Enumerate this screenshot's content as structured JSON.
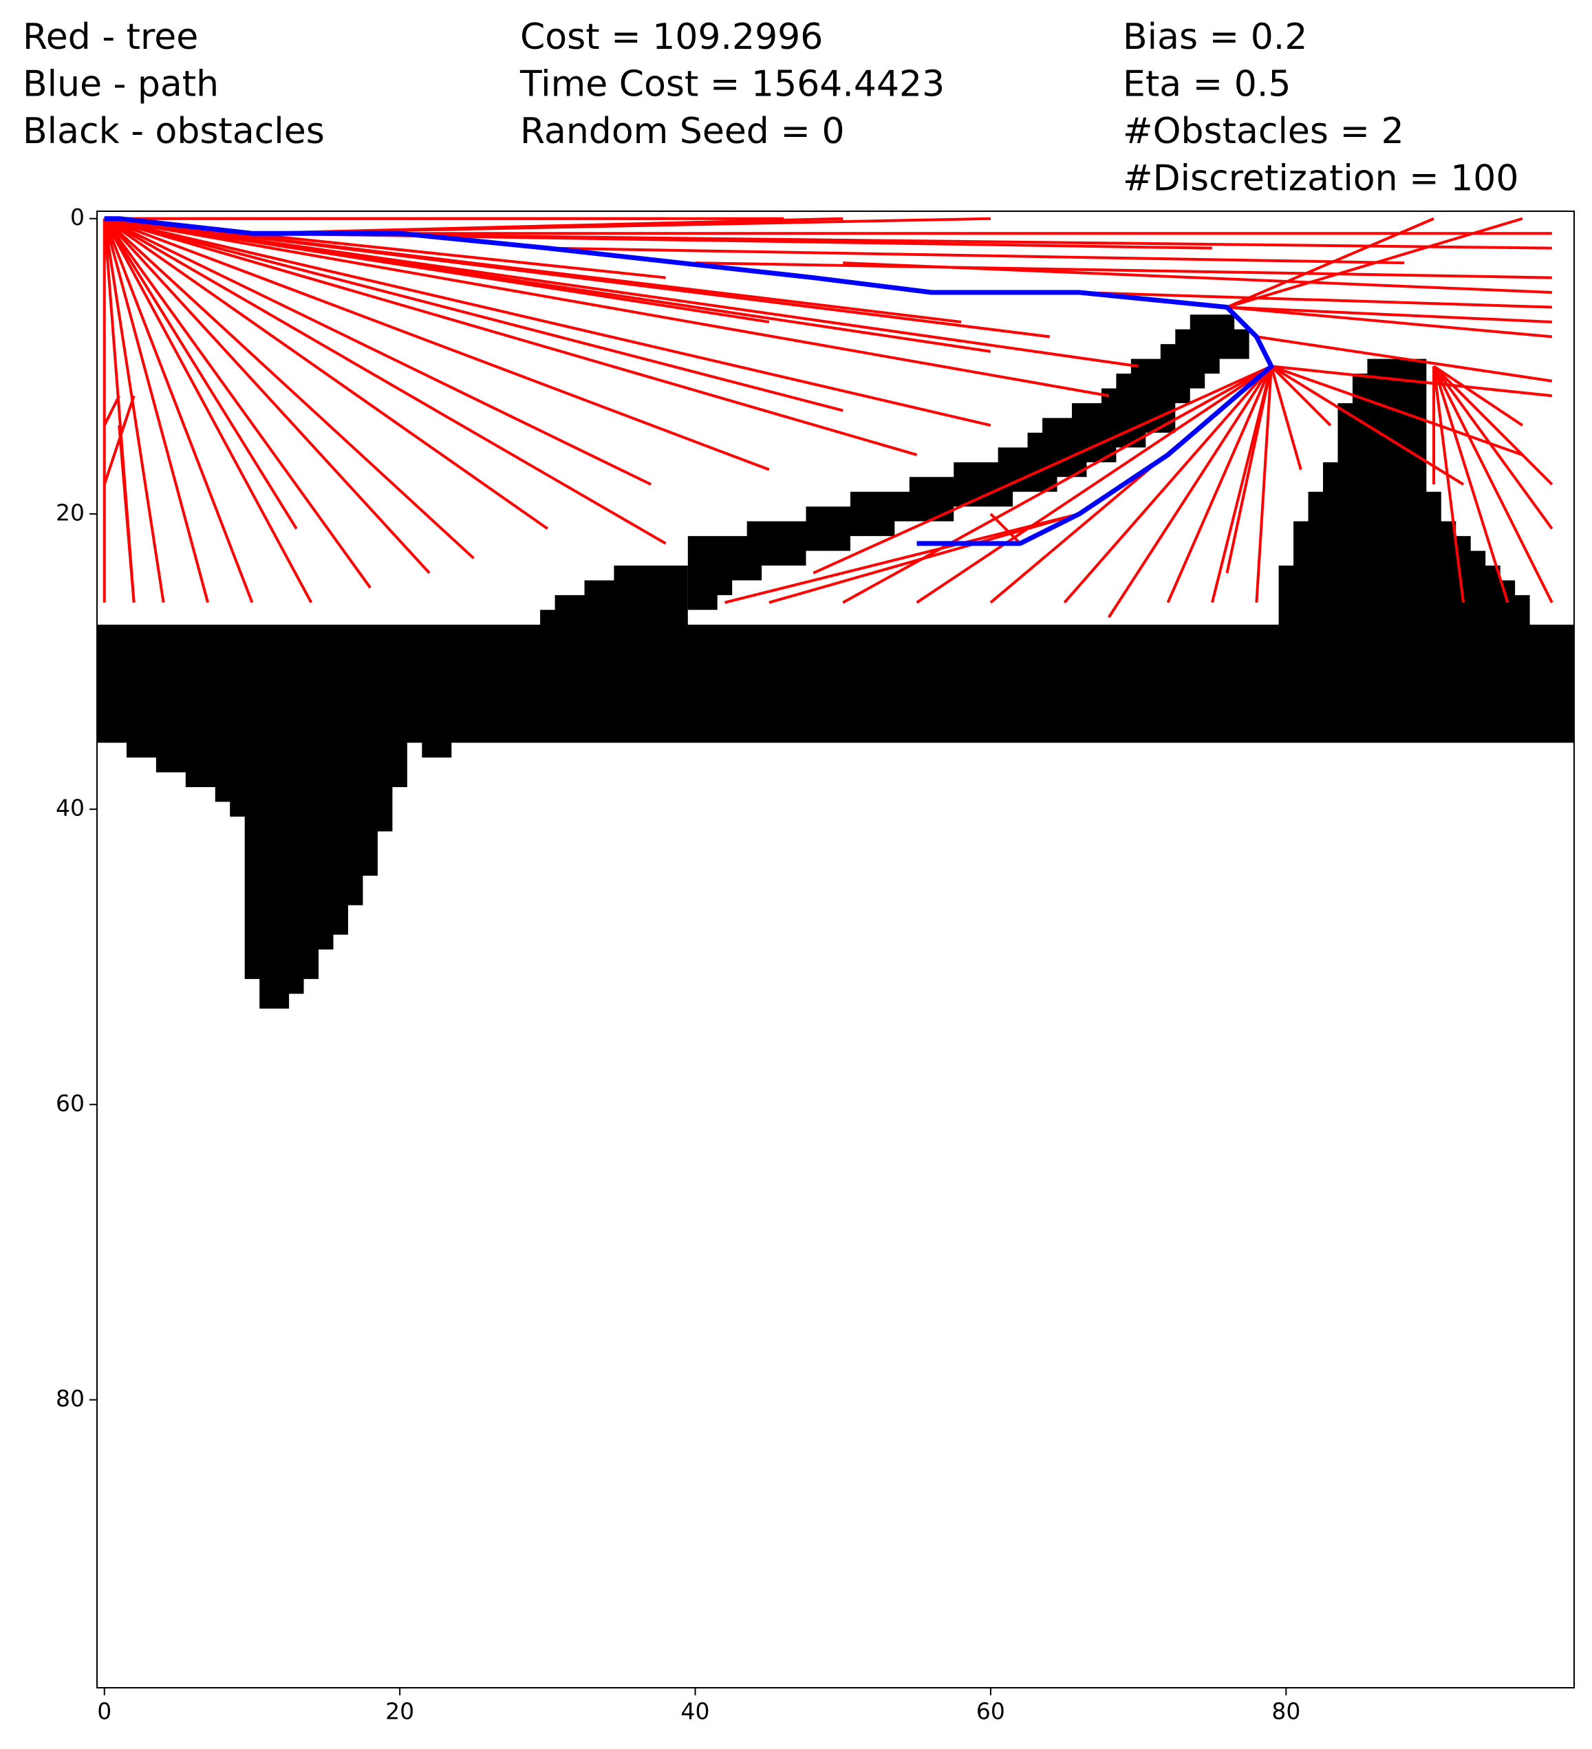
{
  "chart_data": {
    "type": "path-planning",
    "annotations": [
      [
        "Red - tree",
        "Blue - path",
        "Black - obstacles"
      ],
      [
        "Cost = 109.2996",
        "Time Cost = 1564.4423",
        "Random Seed = 0"
      ],
      [
        "Bias = 0.2",
        "Eta = 0.5",
        "#Obstacles = 2",
        "#Discretization = 100"
      ]
    ],
    "xlim": [
      -0.5,
      99.5
    ],
    "ylim": [
      99.5,
      -0.5
    ],
    "xticks": [
      0,
      20,
      40,
      60,
      80
    ],
    "yticks": [
      0,
      20,
      40,
      60,
      80
    ],
    "obstacle_color": "#000000",
    "obstacles": [
      {
        "x": [
          -0.5,
          29.5,
          29.5,
          30.5,
          30.5,
          32.5,
          32.5,
          34.5,
          34.5,
          39.5,
          39.5,
          79.5,
          79.5,
          80.5,
          80.5,
          81.5,
          81.5,
          82.5,
          82.5,
          83.5,
          83.5,
          84.5,
          84.5,
          85.5,
          85.5,
          89.5,
          89.5,
          90.5,
          90.5,
          91.5,
          91.5,
          92.5,
          92.5,
          93.5,
          93.5,
          94.5,
          94.5,
          95.5,
          95.5,
          96.5,
          96.5,
          99.5,
          99.5,
          23.5,
          23.5,
          21.5,
          21.5,
          20.5,
          20.5,
          19.5,
          19.5,
          18.5,
          18.5,
          17.5,
          17.5,
          16.5,
          16.5,
          15.5,
          15.5,
          14.5,
          14.5,
          13.5,
          13.5,
          12.5,
          12.5,
          10.5,
          10.5,
          9.5,
          9.5,
          8.5,
          8.5,
          7.5,
          7.5,
          5.5,
          5.5,
          3.5,
          3.5,
          1.5,
          1.5,
          -0.5
        ],
        "y": [
          27.5,
          27.5,
          26.5,
          26.5,
          25.5,
          25.5,
          24.5,
          24.5,
          23.5,
          23.5,
          27.5,
          27.5,
          23.5,
          23.5,
          20.5,
          20.5,
          18.5,
          18.5,
          16.5,
          16.5,
          12.5,
          12.5,
          10.5,
          10.5,
          9.5,
          9.5,
          18.5,
          18.5,
          20.5,
          20.5,
          21.5,
          21.5,
          22.5,
          22.5,
          23.5,
          23.5,
          24.5,
          24.5,
          25.5,
          25.5,
          27.5,
          27.5,
          35.5,
          35.5,
          36.5,
          36.5,
          35.5,
          35.5,
          38.5,
          38.5,
          41.5,
          41.5,
          44.5,
          44.5,
          46.5,
          46.5,
          48.5,
          48.5,
          49.5,
          49.5,
          51.5,
          51.5,
          52.5,
          52.5,
          53.5,
          53.5,
          51.5,
          51.5,
          40.5,
          40.5,
          39.5,
          39.5,
          38.5,
          38.5,
          37.5,
          37.5,
          36.5,
          36.5,
          35.5,
          35.5
        ]
      },
      {
        "x": [
          39.5,
          43.5,
          43.5,
          47.5,
          47.5,
          50.5,
          50.5,
          54.5,
          54.5,
          57.5,
          57.5,
          60.5,
          60.5,
          62.5,
          62.5,
          63.5,
          63.5,
          65.5,
          65.5,
          67.5,
          67.5,
          68.5,
          68.5,
          69.5,
          69.5,
          71.5,
          71.5,
          72.5,
          72.5,
          73.5,
          73.5,
          76.5,
          76.5,
          77.5,
          77.5,
          75.5,
          75.5,
          74.5,
          74.5,
          73.5,
          73.5,
          72.5,
          72.5,
          70.5,
          70.5,
          68.5,
          68.5,
          66.5,
          66.5,
          64.5,
          64.5,
          61.5,
          61.5,
          57.5,
          57.5,
          53.5,
          53.5,
          50.5,
          50.5,
          47.5,
          47.5,
          44.5,
          44.5,
          42.5,
          42.5,
          41.5,
          41.5,
          39.5
        ],
        "y": [
          21.5,
          21.5,
          20.5,
          20.5,
          19.5,
          19.5,
          18.5,
          18.5,
          17.5,
          17.5,
          16.5,
          16.5,
          15.5,
          15.5,
          14.5,
          14.5,
          13.5,
          13.5,
          12.5,
          12.5,
          11.5,
          11.5,
          10.5,
          10.5,
          9.5,
          9.5,
          8.5,
          8.5,
          7.5,
          7.5,
          6.5,
          6.5,
          7.5,
          7.5,
          9.5,
          9.5,
          10.5,
          10.5,
          11.5,
          11.5,
          12.5,
          12.5,
          14.5,
          14.5,
          15.5,
          15.5,
          16.5,
          16.5,
          17.5,
          17.5,
          18.5,
          18.5,
          19.5,
          19.5,
          20.5,
          20.5,
          21.5,
          21.5,
          22.5,
          22.5,
          23.5,
          23.5,
          24.5,
          24.5,
          25.5,
          25.5,
          26.5,
          26.5
        ]
      }
    ],
    "tree_color": "#ff0000",
    "tree": [
      [
        0,
        0,
        0,
        26
      ],
      [
        0,
        0,
        2,
        26
      ],
      [
        0,
        0,
        4,
        26
      ],
      [
        0,
        0,
        7,
        26
      ],
      [
        0,
        0,
        10,
        26
      ],
      [
        0,
        0,
        14,
        26
      ],
      [
        0,
        0,
        13,
        21
      ],
      [
        0,
        0,
        18,
        25
      ],
      [
        0,
        0,
        22,
        24
      ],
      [
        0,
        0,
        25,
        23
      ],
      [
        0,
        0,
        30,
        21
      ],
      [
        0,
        0,
        38,
        22
      ],
      [
        0,
        0,
        37,
        18
      ],
      [
        0,
        0,
        45,
        17
      ],
      [
        0,
        0,
        55,
        16
      ],
      [
        0,
        0,
        50,
        13
      ],
      [
        0,
        0,
        60,
        14
      ],
      [
        0,
        0,
        68,
        12
      ],
      [
        0,
        0,
        60,
        9
      ],
      [
        0,
        0,
        70,
        10
      ],
      [
        0,
        0,
        45,
        7
      ],
      [
        0,
        0,
        58,
        7
      ],
      [
        0,
        0,
        64,
        8
      ],
      [
        0,
        0,
        38,
        4
      ],
      [
        0,
        0,
        38,
        0
      ],
      [
        0,
        0,
        46,
        0
      ],
      [
        1,
        12,
        0,
        14
      ],
      [
        2,
        12,
        0,
        18
      ],
      [
        1,
        14,
        2,
        26
      ],
      [
        10,
        1,
        50,
        0
      ],
      [
        10,
        1,
        60,
        0
      ],
      [
        10,
        1,
        75,
        2
      ],
      [
        10,
        1,
        98,
        2
      ],
      [
        20,
        1,
        98,
        1
      ],
      [
        30,
        2,
        88,
        3
      ],
      [
        40,
        3,
        98,
        4
      ],
      [
        50,
        3,
        98,
        5
      ],
      [
        66,
        5,
        98,
        6
      ],
      [
        76,
        6,
        98,
        7
      ],
      [
        76,
        6,
        90,
        0
      ],
      [
        76,
        6,
        96,
        0
      ],
      [
        76,
        6,
        98,
        8
      ],
      [
        78,
        8,
        98,
        11
      ],
      [
        79,
        10,
        98,
        12
      ],
      [
        79,
        10,
        96,
        16
      ],
      [
        79,
        10,
        92,
        18
      ],
      [
        79,
        10,
        78,
        26
      ],
      [
        79,
        10,
        75,
        26
      ],
      [
        79,
        10,
        72,
        26
      ],
      [
        79,
        10,
        68,
        27
      ],
      [
        79,
        10,
        65,
        26
      ],
      [
        79,
        10,
        60,
        26
      ],
      [
        79,
        10,
        55,
        26
      ],
      [
        79,
        10,
        50,
        26
      ],
      [
        79,
        10,
        48,
        24
      ],
      [
        79,
        10,
        81,
        17
      ],
      [
        79,
        10,
        83,
        14
      ],
      [
        79,
        10,
        76,
        24
      ],
      [
        66,
        20,
        45,
        26
      ],
      [
        66,
        20,
        42,
        26
      ],
      [
        62,
        22,
        60,
        20
      ],
      [
        90,
        10,
        90,
        18
      ],
      [
        90,
        10,
        92,
        26
      ],
      [
        90,
        10,
        95,
        26
      ],
      [
        90,
        10,
        98,
        26
      ],
      [
        90,
        10,
        98,
        21
      ],
      [
        90,
        10,
        98,
        18
      ],
      [
        90,
        10,
        96,
        14
      ]
    ],
    "path_color": "#0000ff",
    "path": {
      "x": [
        0,
        1,
        10,
        20,
        30,
        39,
        48,
        56,
        66,
        76,
        78,
        79,
        72,
        66,
        62,
        55
      ],
      "y": [
        0,
        0,
        1,
        1,
        2,
        3,
        4,
        5,
        5,
        6,
        8,
        10,
        16,
        20,
        22,
        22
      ]
    }
  }
}
